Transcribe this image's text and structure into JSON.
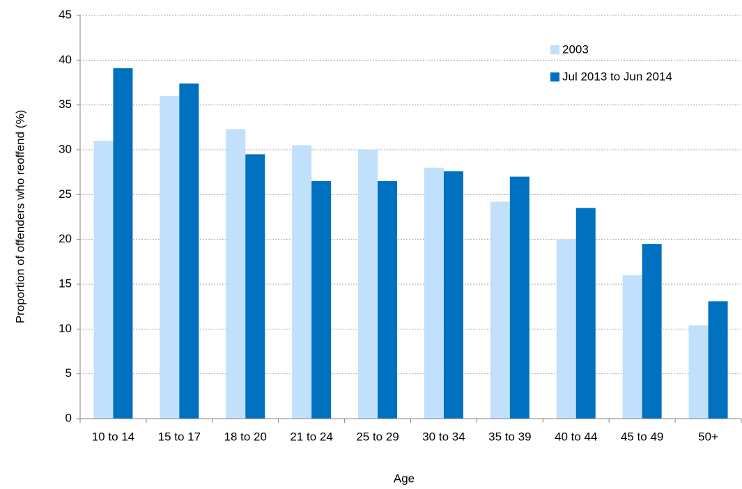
{
  "chart_data": {
    "type": "bar",
    "x_label": "Age",
    "y_label": "Proportion of offenders who reoffend (%)",
    "categories": [
      "10 to 14",
      "15 to 17",
      "18 to 20",
      "21 to 24",
      "25 to 29",
      "30 to 34",
      "35 to 39",
      "40 to 44",
      "45 to 49",
      "50+"
    ],
    "series": [
      {
        "name": "2003",
        "color": "#c0e0fc",
        "values": [
          31.0,
          36.0,
          32.3,
          30.5,
          30.0,
          28.0,
          24.2,
          20.0,
          16.0,
          10.4
        ]
      },
      {
        "name": "Jul 2013 to Jun 2014",
        "color": "#0070c0",
        "values": [
          39.1,
          37.4,
          29.5,
          26.5,
          26.5,
          27.6,
          27.0,
          23.5,
          19.5,
          13.1
        ]
      }
    ],
    "ylim": [
      0,
      45
    ],
    "yticks": [
      0,
      5,
      10,
      15,
      20,
      25,
      30,
      35,
      40,
      45
    ],
    "grid": true,
    "legend": "top-right"
  }
}
